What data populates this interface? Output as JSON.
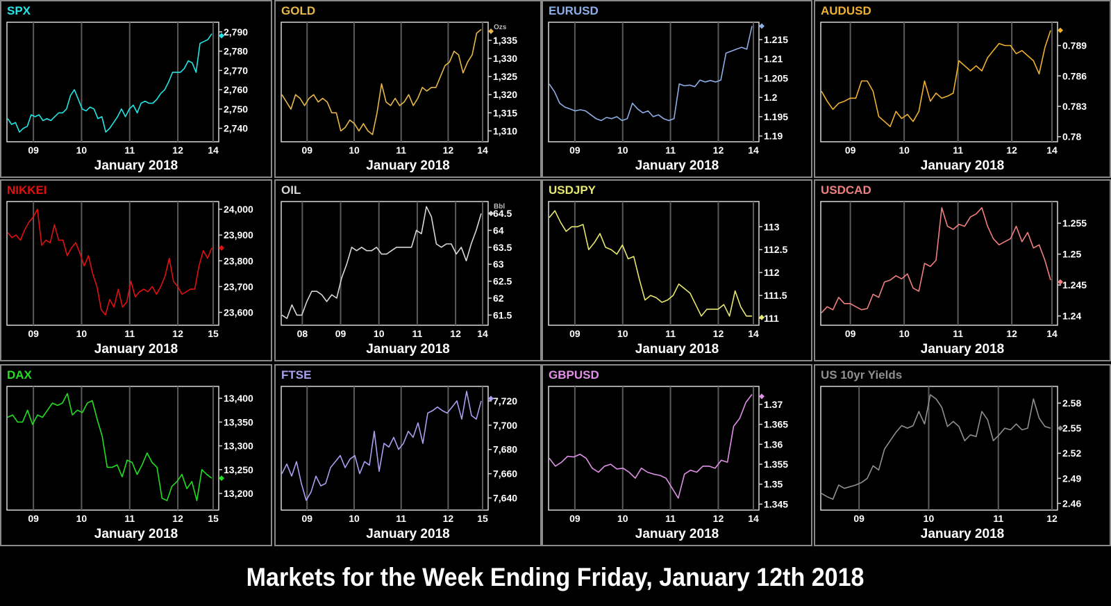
{
  "page_title": "Markets for the Week Ending Friday, January 12th 2018",
  "chart_data": [
    {
      "id": "spx",
      "type": "line",
      "title": "SPX",
      "color": "#22e6e6",
      "xlabel": "January 2018",
      "x_ticks": [
        "09",
        "10",
        "11",
        "12",
        "14"
      ],
      "y_ticks": [
        2740,
        2750,
        2760,
        2770,
        2780,
        2790
      ],
      "y_tick_labels": [
        "2,740",
        "2,750",
        "2,760",
        "2,770",
        "2,780",
        "2,790"
      ],
      "ylim": [
        2733,
        2795
      ],
      "unit": "",
      "last": 2788,
      "values": [
        2745,
        2742,
        2743,
        2738,
        2740,
        2741,
        2747,
        2746,
        2747,
        2744,
        2745,
        2744,
        2746,
        2748,
        2748,
        2750,
        2757,
        2760,
        2755,
        2750,
        2749,
        2751,
        2750,
        2745,
        2746,
        2738,
        2740,
        2743,
        2746,
        2750,
        2746,
        2750,
        2752,
        2748,
        2753,
        2754,
        2753,
        2753,
        2755,
        2758,
        2760,
        2764,
        2769,
        2769,
        2769,
        2771,
        2775,
        2774,
        2769,
        2784,
        2785,
        2786,
        2789
      ]
    },
    {
      "id": "gold",
      "type": "line",
      "title": "GOLD",
      "color": "#e8b84a",
      "xlabel": "January 2018",
      "x_ticks": [
        "09",
        "10",
        "11",
        "12",
        "14"
      ],
      "y_ticks": [
        1310,
        1315,
        1320,
        1325,
        1330,
        1335
      ],
      "y_tick_labels": [
        "1,310",
        "1,315",
        "1,320",
        "1,325",
        "1,330",
        "1,335"
      ],
      "ylim": [
        1307,
        1340
      ],
      "unit": "Ozs",
      "last": 1337.5,
      "values": [
        1320,
        1318,
        1316,
        1320,
        1319,
        1317,
        1319,
        1320,
        1318,
        1319,
        1318,
        1315,
        1315,
        1310,
        1311,
        1313,
        1312,
        1310,
        1312,
        1310,
        1309,
        1315,
        1323,
        1318,
        1317,
        1319,
        1317,
        1318,
        1320,
        1317,
        1319,
        1322,
        1321,
        1322,
        1322,
        1325,
        1328,
        1329,
        1332,
        1331,
        1326,
        1329,
        1331,
        1337,
        1338
      ]
    },
    {
      "id": "eurusd",
      "type": "line",
      "title": "EURUSD",
      "color": "#8eaee8",
      "xlabel": "January 2018",
      "x_ticks": [
        "09",
        "10",
        "11",
        "12",
        "14"
      ],
      "y_ticks": [
        1.19,
        1.195,
        1.2,
        1.205,
        1.21,
        1.215
      ],
      "y_tick_labels": [
        "1.19",
        "1.195",
        "1.2",
        "1.205",
        "1.21",
        "1.215"
      ],
      "ylim": [
        1.1885,
        1.2195
      ],
      "unit": "",
      "last": 1.2185,
      "values": [
        1.2035,
        1.2015,
        1.1985,
        1.1975,
        1.197,
        1.1965,
        1.1968,
        1.1965,
        1.1955,
        1.1945,
        1.194,
        1.1948,
        1.1945,
        1.195,
        1.194,
        1.1945,
        1.1985,
        1.197,
        1.196,
        1.1965,
        1.195,
        1.1955,
        1.1945,
        1.194,
        1.1945,
        1.2035,
        1.203,
        1.2032,
        1.2028,
        1.2045,
        1.204,
        1.2044,
        1.204,
        1.2045,
        1.2115,
        1.212,
        1.2125,
        1.213,
        1.2125,
        1.2185
      ]
    },
    {
      "id": "audusd",
      "type": "line",
      "title": "AUDUSD",
      "color": "#f0b030",
      "xlabel": "January 2018",
      "x_ticks": [
        "09",
        "10",
        "11",
        "12",
        "14"
      ],
      "y_ticks": [
        0.78,
        0.783,
        0.786,
        0.789
      ],
      "y_tick_labels": [
        "0.78",
        "0.783",
        "0.786",
        "0.789"
      ],
      "ylim": [
        0.7795,
        0.7913
      ],
      "unit": "",
      "last": 0.7905,
      "values": [
        0.7845,
        0.7835,
        0.7827,
        0.7833,
        0.7835,
        0.7838,
        0.7838,
        0.7855,
        0.7855,
        0.7845,
        0.782,
        0.7815,
        0.781,
        0.7825,
        0.7818,
        0.7822,
        0.7815,
        0.7825,
        0.7855,
        0.7835,
        0.7843,
        0.7838,
        0.784,
        0.7843,
        0.7875,
        0.787,
        0.7865,
        0.787,
        0.7865,
        0.7878,
        0.7885,
        0.7892,
        0.789,
        0.789,
        0.7882,
        0.7885,
        0.788,
        0.7875,
        0.7862,
        0.7888,
        0.7905
      ]
    },
    {
      "id": "nikkei",
      "type": "line",
      "title": "NIKKEI",
      "color": "#e01010",
      "xlabel": "January 2018",
      "x_ticks": [
        "09",
        "10",
        "11",
        "12",
        "15"
      ],
      "y_ticks": [
        23600,
        23700,
        23800,
        23900,
        24000
      ],
      "y_tick_labels": [
        "23,600",
        "23,700",
        "23,800",
        "23,900",
        "24,000"
      ],
      "ylim": [
        23550,
        24030
      ],
      "unit": "",
      "last": 23850,
      "values": [
        23910,
        23890,
        23900,
        23880,
        23920,
        23950,
        23970,
        24000,
        23860,
        23880,
        23870,
        23940,
        23880,
        23880,
        23820,
        23850,
        23870,
        23830,
        23780,
        23820,
        23750,
        23700,
        23610,
        23590,
        23650,
        23620,
        23690,
        23620,
        23640,
        23720,
        23660,
        23680,
        23690,
        23680,
        23700,
        23670,
        23700,
        23740,
        23810,
        23720,
        23700,
        23670,
        23680,
        23690,
        23690,
        23780,
        23840,
        23810,
        23850
      ]
    },
    {
      "id": "oil",
      "type": "line",
      "title": "OIL",
      "color": "#d8d8d8",
      "xlabel": "January 2018",
      "x_ticks": [
        "08",
        "09",
        "10",
        "11",
        "12",
        "14"
      ],
      "y_ticks": [
        61.5,
        62,
        62.5,
        63,
        63.5,
        64,
        64.5
      ],
      "y_tick_labels": [
        "61.5",
        "62",
        "62.5",
        "63",
        "63.5",
        "64",
        "64.5"
      ],
      "ylim": [
        61.2,
        64.85
      ],
      "unit": "Bbl",
      "last": 64.5,
      "values": [
        61.5,
        61.4,
        61.8,
        61.5,
        61.5,
        61.9,
        62.2,
        62.2,
        62.1,
        61.9,
        62.1,
        62.0,
        62.6,
        63.0,
        63.5,
        63.4,
        63.5,
        63.4,
        63.4,
        63.5,
        63.3,
        63.3,
        63.4,
        63.5,
        63.5,
        63.5,
        63.5,
        64.0,
        63.9,
        64.7,
        64.4,
        63.6,
        63.5,
        63.6,
        63.6,
        63.3,
        63.5,
        63.1,
        63.6,
        64.0,
        64.5
      ]
    },
    {
      "id": "usdjpy",
      "type": "line",
      "title": "USDJPY",
      "color": "#e8e870",
      "xlabel": "January 2018",
      "x_ticks": [
        "09",
        "10",
        "11",
        "12",
        "14"
      ],
      "y_ticks": [
        111,
        111.5,
        112,
        112.5,
        113
      ],
      "y_tick_labels": [
        "111",
        "111.5",
        "112",
        "112.5",
        "113"
      ],
      "ylim": [
        110.85,
        113.55
      ],
      "unit": "",
      "last": 111.02,
      "values": [
        113.2,
        113.35,
        113.1,
        112.9,
        113.0,
        113.0,
        113.05,
        112.5,
        112.65,
        112.85,
        112.55,
        112.5,
        112.4,
        112.6,
        112.3,
        112.35,
        111.85,
        111.4,
        111.5,
        111.45,
        111.35,
        111.4,
        111.5,
        111.75,
        111.65,
        111.55,
        111.3,
        111.05,
        111.2,
        111.2,
        111.2,
        111.3,
        111.05,
        111.6,
        111.25,
        111.05,
        111.05
      ]
    },
    {
      "id": "usdcad",
      "type": "line",
      "title": "USDCAD",
      "color": "#f08080",
      "xlabel": "January 2018",
      "x_ticks": [
        "09",
        "10",
        "11",
        "12",
        "14"
      ],
      "y_ticks": [
        1.24,
        1.245,
        1.25,
        1.255
      ],
      "y_tick_labels": [
        "1.24",
        "1.245",
        "1.25",
        "1.255"
      ],
      "ylim": [
        1.2385,
        1.2585
      ],
      "unit": "",
      "last": 1.2455,
      "values": [
        1.2405,
        1.2415,
        1.241,
        1.243,
        1.242,
        1.242,
        1.2415,
        1.241,
        1.2412,
        1.2435,
        1.243,
        1.2455,
        1.2458,
        1.2465,
        1.246,
        1.2468,
        1.2445,
        1.244,
        1.2485,
        1.248,
        1.249,
        1.2575,
        1.2545,
        1.254,
        1.2548,
        1.2545,
        1.256,
        1.2565,
        1.2575,
        1.2545,
        1.2525,
        1.2515,
        1.252,
        1.2525,
        1.2545,
        1.252,
        1.2535,
        1.251,
        1.2515,
        1.249,
        1.2458
      ]
    },
    {
      "id": "dax",
      "type": "line",
      "title": "DAX",
      "color": "#20e020",
      "xlabel": "January 2018",
      "x_ticks": [
        "09",
        "10",
        "11",
        "12",
        "15"
      ],
      "y_ticks": [
        13200,
        13250,
        13300,
        13350,
        13400
      ],
      "y_tick_labels": [
        "13,200",
        "13,250",
        "13,300",
        "13,350",
        "13,400"
      ],
      "ylim": [
        13165,
        13425
      ],
      "unit": "",
      "last": 13232,
      "values": [
        13360,
        13365,
        13350,
        13350,
        13375,
        13345,
        13365,
        13360,
        13375,
        13390,
        13385,
        13390,
        13410,
        13365,
        13375,
        13370,
        13390,
        13395,
        13355,
        13320,
        13255,
        13255,
        13260,
        13235,
        13270,
        13265,
        13240,
        13260,
        13285,
        13265,
        13255,
        13190,
        13185,
        13215,
        13225,
        13240,
        13210,
        13225,
        13185,
        13250,
        13240,
        13232
      ]
    },
    {
      "id": "ftse",
      "type": "line",
      "title": "FTSE",
      "color": "#a8a0f0",
      "xlabel": "January 2018",
      "x_ticks": [
        "09",
        "10",
        "11",
        "12",
        "15"
      ],
      "y_ticks": [
        7640,
        7660,
        7680,
        7700,
        7720
      ],
      "y_tick_labels": [
        "7,640",
        "7,660",
        "7,680",
        "7,700",
        "7,720"
      ],
      "ylim": [
        7630,
        7732
      ],
      "unit": "",
      "last": 7722,
      "values": [
        7660,
        7668,
        7658,
        7670,
        7652,
        7638,
        7645,
        7658,
        7650,
        7652,
        7665,
        7670,
        7675,
        7665,
        7672,
        7675,
        7660,
        7670,
        7667,
        7695,
        7662,
        7685,
        7682,
        7690,
        7680,
        7685,
        7695,
        7690,
        7702,
        7685,
        7710,
        7712,
        7715,
        7712,
        7710,
        7715,
        7720,
        7705,
        7728,
        7708,
        7705,
        7720
      ]
    },
    {
      "id": "gbpusd",
      "type": "line",
      "title": "GBPUSD",
      "color": "#e090e8",
      "xlabel": "January 2018",
      "x_ticks": [
        "09",
        "10",
        "11",
        "12",
        "14"
      ],
      "y_ticks": [
        1.345,
        1.35,
        1.355,
        1.36,
        1.365,
        1.37
      ],
      "y_tick_labels": [
        "1.345",
        "1.35",
        "1.355",
        "1.36",
        "1.365",
        "1.37"
      ],
      "ylim": [
        1.3435,
        1.3745
      ],
      "unit": "",
      "last": 1.372,
      "values": [
        1.3565,
        1.3545,
        1.3555,
        1.357,
        1.3568,
        1.3575,
        1.3565,
        1.354,
        1.353,
        1.3545,
        1.355,
        1.3538,
        1.354,
        1.353,
        1.3515,
        1.354,
        1.353,
        1.3525,
        1.3522,
        1.3515,
        1.349,
        1.3465,
        1.3525,
        1.3535,
        1.353,
        1.3545,
        1.3545,
        1.354,
        1.356,
        1.3555,
        1.3645,
        1.3665,
        1.3705,
        1.3725
      ]
    },
    {
      "id": "us10yr",
      "type": "line",
      "title": "US 10yr Yields",
      "color": "#909090",
      "xlabel": "January 2018",
      "x_ticks": [
        "09",
        "10",
        "11",
        "12"
      ],
      "y_ticks": [
        2.46,
        2.49,
        2.52,
        2.55,
        2.58
      ],
      "y_tick_labels": [
        "2.46",
        "2.49",
        "2.52",
        "2.55",
        "2.58"
      ],
      "ylim": [
        2.452,
        2.6
      ],
      "unit": "",
      "last": 2.55,
      "values": [
        2.472,
        2.468,
        2.465,
        2.482,
        2.478,
        2.48,
        2.482,
        2.485,
        2.49,
        2.505,
        2.5,
        2.525,
        2.535,
        2.545,
        2.553,
        2.55,
        2.553,
        2.57,
        2.555,
        2.59,
        2.585,
        2.575,
        2.552,
        2.558,
        2.552,
        2.535,
        2.542,
        2.54,
        2.57,
        2.56,
        2.535,
        2.542,
        2.55,
        2.548,
        2.555,
        2.548,
        2.55,
        2.585,
        2.562,
        2.552,
        2.55
      ]
    }
  ],
  "panels": [
    {
      "title": "SPX"
    },
    {
      "title": "GOLD"
    },
    {
      "title": "EURUSD"
    },
    {
      "title": "AUDUSD"
    },
    {
      "title": "NIKKEI"
    },
    {
      "title": "OIL"
    },
    {
      "title": "USDJPY"
    },
    {
      "title": "USDCAD"
    },
    {
      "title": "DAX"
    },
    {
      "title": "FTSE"
    },
    {
      "title": "GBPUSD"
    },
    {
      "title": "US 10yr Yields"
    }
  ],
  "xlabel": "January 2018"
}
